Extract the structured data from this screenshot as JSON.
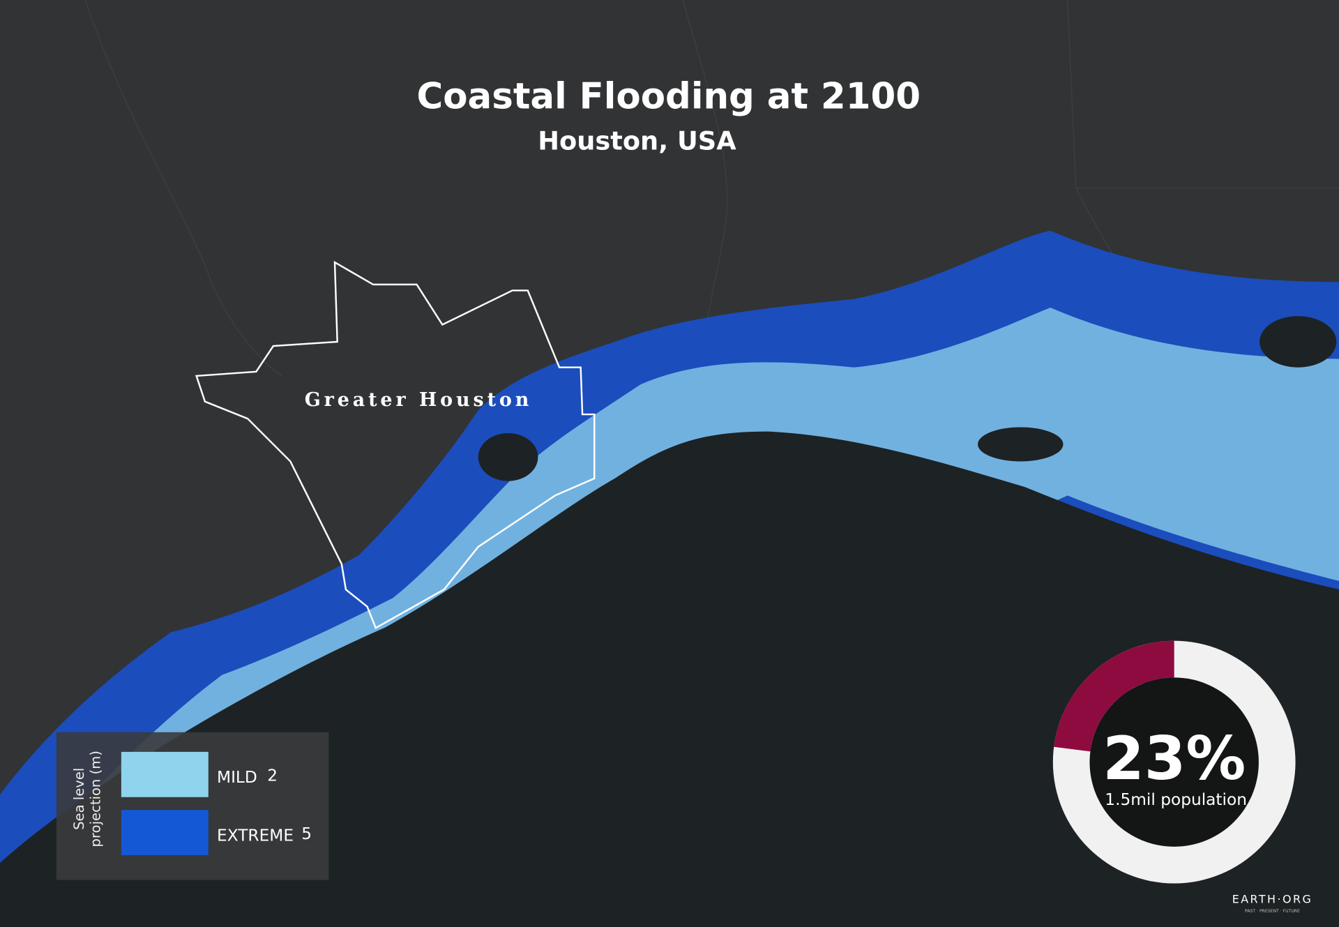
{
  "header": {
    "title": "Coastal Flooding at 2100",
    "subtitle": "Houston, USA"
  },
  "map": {
    "region_label": "Greater Houston"
  },
  "legend": {
    "title_lines": [
      "Sea level",
      "projection (m)"
    ],
    "levels": [
      {
        "name": "MILD",
        "value": 2,
        "color": "#8fd3ec"
      },
      {
        "name": "EXTREME",
        "value": 5,
        "color": "#1458d6"
      }
    ]
  },
  "stat": {
    "value": 23,
    "value_label": "23%",
    "caption": "1.5mil population",
    "color": "#8e0b40"
  },
  "logo": {
    "name": "EARTH·ORG",
    "tagline": "PAST · PRESENT · FUTURE"
  }
}
